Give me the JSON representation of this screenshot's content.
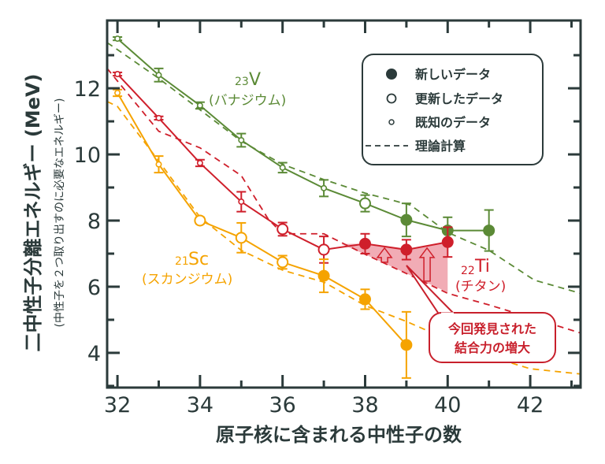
{
  "chart_data": {
    "type": "line",
    "xlabel": "原子核に含まれる中性子の数",
    "ylabel": "二中性子分離エネルギー (MeV)",
    "ylabel_sub": "(中性子を２つ取り出すのに必要なエネルギー)",
    "xlim": [
      31.75,
      43.22
    ],
    "ylim": [
      2.95,
      14.05
    ],
    "xticks_major": [
      32,
      34,
      36,
      38,
      40,
      42
    ],
    "xticks_minor": [
      33,
      35,
      37,
      39,
      41,
      43
    ],
    "yticks_major": [
      4,
      6,
      8,
      10,
      12
    ],
    "yticks_minor": [
      3,
      5,
      7,
      9,
      11,
      13
    ],
    "grid": false,
    "legend_position": "top-right",
    "legend": [
      {
        "marker": "filled",
        "label": "新しいデータ"
      },
      {
        "marker": "open",
        "label": "更新したデータ"
      },
      {
        "marker": "small",
        "label": "既知のデータ"
      },
      {
        "marker": "dashed",
        "label": "理論計算"
      }
    ],
    "series": [
      {
        "name": "V",
        "label_sub": "23",
        "label_main": "V",
        "label_jp": "(バナジウム)",
        "color": "#5b8a36",
        "x": [
          32,
          33,
          34,
          35,
          36,
          37,
          38,
          39,
          40,
          41
        ],
        "y": [
          13.5,
          12.4,
          11.48,
          10.43,
          9.6,
          8.98,
          8.52,
          8.02,
          7.7,
          7.7
        ],
        "err": [
          0.05,
          0.2,
          0.1,
          0.2,
          0.15,
          0.25,
          0.25,
          0.5,
          0.4,
          0.62
        ],
        "marker": [
          "small",
          "small",
          "small",
          "small",
          "small",
          "small",
          "open",
          "filled",
          "filled",
          "filled"
        ],
        "theory": {
          "x": [
            31.75,
            32,
            33,
            34,
            35,
            36,
            37,
            38,
            39.1,
            40,
            41,
            42.1,
            43.22
          ],
          "y": [
            13.38,
            13.17,
            12.3,
            11.35,
            10.4,
            9.7,
            9.24,
            8.83,
            8.47,
            7.64,
            7.1,
            6.2,
            5.8
          ]
        }
      },
      {
        "name": "Ti",
        "label_sub": "22",
        "label_main": "Ti",
        "label_jp": "(チタン)",
        "color": "#cf1f2b",
        "x": [
          32,
          33,
          34,
          35,
          36,
          37,
          38,
          39,
          40
        ],
        "y": [
          12.43,
          11.1,
          9.74,
          8.57,
          7.74,
          7.12,
          7.3,
          7.12,
          7.35
        ],
        "err": [
          0.05,
          0.05,
          0.1,
          0.3,
          0.2,
          0.4,
          0.3,
          0.3,
          0.45
        ],
        "marker": [
          "small",
          "small",
          "small",
          "small",
          "open",
          "open",
          "filled",
          "filled",
          "filled"
        ],
        "theory": {
          "x": [
            31.75,
            33,
            34,
            35,
            35.65,
            36,
            37,
            38,
            39,
            40,
            41,
            42,
            43.22
          ],
          "y": [
            12.6,
            10.7,
            10.2,
            9.36,
            8.05,
            7.6,
            7.6,
            6.98,
            6.4,
            5.8,
            5.45,
            5.07,
            4.6
          ]
        }
      },
      {
        "name": "Sc",
        "label_sub": "21",
        "label_main": "Sc",
        "label_jp": "(スカンジウム)",
        "color": "#f5a300",
        "x": [
          32,
          33,
          34,
          35,
          36,
          37,
          38,
          39
        ],
        "y": [
          11.86,
          9.7,
          8.0,
          7.48,
          6.74,
          6.33,
          5.62,
          4.24
        ],
        "err": [
          0.1,
          0.25,
          0.1,
          0.45,
          0.2,
          0.5,
          0.3,
          1.0
        ],
        "marker": [
          "small",
          "small",
          "open",
          "open",
          "open",
          "filled",
          "filled",
          "filled"
        ],
        "theory": {
          "x": [
            31.75,
            32,
            33,
            34,
            35,
            36,
            37,
            38,
            39,
            40,
            41,
            42,
            43.22
          ],
          "y": [
            11.6,
            11.45,
            9.8,
            8.1,
            7.1,
            6.5,
            6.14,
            5.43,
            4.95,
            4.4,
            3.9,
            3.52,
            3.36
          ]
        }
      }
    ],
    "annotation": {
      "text_line1": "今回発見された",
      "text_line2": "結合力の増大",
      "shade_color": "#f0a3ad",
      "region": {
        "x": [
          37.42,
          38,
          39,
          40,
          40,
          39,
          38,
          37.42
        ],
        "y": [
          7.29,
          7.3,
          7.12,
          7.35,
          5.83,
          6.4,
          6.98,
          7.29
        ]
      },
      "arrows": [
        {
          "x": 38.47,
          "from": 6.74,
          "to": 7.17
        },
        {
          "x": 39.5,
          "from": 6.17,
          "to": 7.17
        }
      ]
    }
  }
}
